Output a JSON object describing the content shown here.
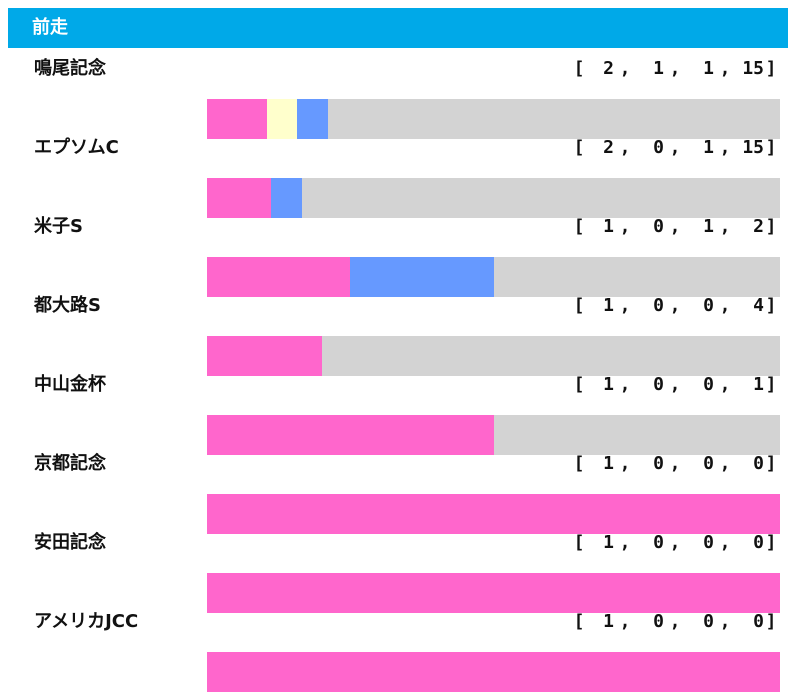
{
  "header": {
    "title": "前走"
  },
  "colors": {
    "first": "#ff66cc",
    "second": "#ffffcc",
    "third": "#6699ff",
    "other": "#d3d3d3",
    "header_bg": "#00a9e8"
  },
  "chart_data": {
    "type": "bar",
    "orientation": "horizontal-stacked-100",
    "categories": [
      "鳴尾記念",
      "エプソムC",
      "米子S",
      "都大路S",
      "中山金杯",
      "京都記念",
      "安田記念",
      "アメリカJCC"
    ],
    "series": [
      {
        "values": [
          2,
          2,
          1,
          1,
          1,
          1,
          1,
          1
        ]
      },
      {
        "values": [
          1,
          0,
          0,
          0,
          0,
          0,
          0,
          0
        ]
      },
      {
        "values": [
          1,
          1,
          1,
          0,
          0,
          0,
          0,
          0
        ]
      },
      {
        "values": [
          15,
          15,
          2,
          4,
          1,
          0,
          0,
          0
        ]
      }
    ]
  }
}
